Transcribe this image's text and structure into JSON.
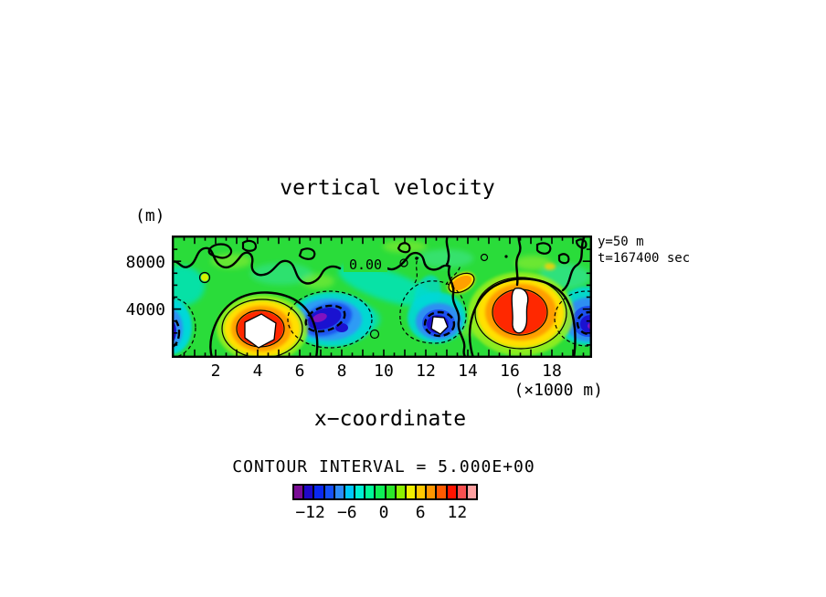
{
  "title": "vertical velocity",
  "annotations": {
    "slice": "y=50 m",
    "time": "t=167400 sec"
  },
  "axes": {
    "x": {
      "label": "x−coordinate",
      "unit_note": "(×1000 m)",
      "tick_labels": [
        "2",
        "4",
        "6",
        "8",
        "10",
        "12",
        "14",
        "16",
        "18"
      ]
    },
    "y": {
      "unit_label": "(m)",
      "tick_labels": [
        "8000",
        "4000"
      ]
    }
  },
  "contour_note": "CONTOUR INTERVAL = 5.000E+00",
  "contour_labels": {
    "zero": "0.00"
  },
  "colorbar": {
    "tick_labels": [
      "−12",
      "−6",
      "0",
      "6",
      "12"
    ],
    "tick_values": [
      -12,
      -6,
      0,
      6,
      12
    ],
    "colors": [
      "#7A0D96",
      "#2008C8",
      "#0A28F0",
      "#1550FA",
      "#2E8CFA",
      "#00C8FA",
      "#00F0D2",
      "#00FA96",
      "#0EF055",
      "#2BE629",
      "#8CF000",
      "#F0F000",
      "#FFC800",
      "#FF9600",
      "#FF5A00",
      "#FF1400",
      "#F85050",
      "#FFA0A0"
    ]
  },
  "chart_data": {
    "type": "heatmap",
    "variant": "filled-contour-slice",
    "title": "vertical velocity",
    "xlabel": "x−coordinate (×1000 m)",
    "ylabel": "(m)",
    "xlim_m": [
      0,
      20000
    ],
    "ylim_m": [
      0,
      10000
    ],
    "x_major_ticks_km": [
      2,
      4,
      6,
      8,
      10,
      12,
      14,
      16,
      18
    ],
    "y_major_ticks_m": [
      4000,
      8000
    ],
    "contour_interval": 5.0,
    "colorbar_tick_values": [
      -12,
      -6,
      0,
      6,
      12
    ],
    "slice_plane": "y=50 m",
    "time_sec": 167400,
    "zero_contour_label": {
      "text": "0.00",
      "x_km": 9.2,
      "z_m": 7600
    },
    "features": [
      {
        "kind": "updraft-maximum",
        "x_km": 4.2,
        "z_m": 2200,
        "value": "> +15 (off-scale, white core)"
      },
      {
        "kind": "downdraft",
        "x_km": 7.5,
        "z_m": 3100,
        "value": "< -10 (purple core)"
      },
      {
        "kind": "downdraft-minimum",
        "x_km": 12.7,
        "z_m": 2800,
        "value": "< -14 (off-scale, white core)"
      },
      {
        "kind": "updraft-maximum",
        "x_km": 16.6,
        "z_m": 3600,
        "value": "> +15 (off-scale, white core)"
      },
      {
        "kind": "downdraft",
        "x_km": 19.6,
        "z_m": 2700,
        "value": "< -10 (purple core)"
      },
      {
        "kind": "downdraft",
        "x_km": 0.1,
        "z_m": 2500,
        "value": "< -10 (purple core, clipped at left edge)"
      },
      {
        "kind": "weak-updraft-patch",
        "x_km": 13.8,
        "z_m": 6300,
        "value": "~ +8 (small orange lens)"
      },
      {
        "kind": "background",
        "value": "near 0 to +4, green field with cyan (slightly negative) bands"
      }
    ],
    "legend_position": "bottom-center",
    "grid": false
  }
}
